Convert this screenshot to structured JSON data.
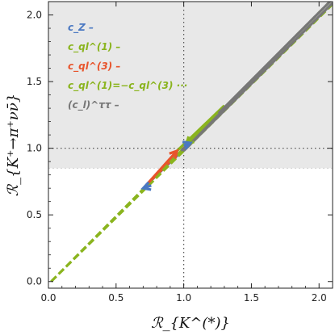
{
  "chart_data": {
    "type": "line",
    "title": "",
    "xlabel": "ℛ_{K^(*)}",
    "ylabel": "ℛ_{K⁺→π⁺νν̄}",
    "xlim": [
      0,
      2.1
    ],
    "ylim": [
      -0.05,
      2.1
    ],
    "x_ticks": [
      "0.0",
      "0.5",
      "1.0",
      "1.5",
      "2.0"
    ],
    "y_ticks": [
      "0.0",
      "0.5",
      "1.0",
      "1.5",
      "2.0"
    ],
    "grid": false,
    "reference_lines": {
      "x": 1.0,
      "y": 1.0
    },
    "shaded_region": {
      "y_from": 0.85,
      "y_to": 2.1,
      "color": "#e8e8e8"
    },
    "legend": {
      "placement": "top-left",
      "entries": [
        {
          "label": "c_Z –",
          "color": "#4a78c2"
        },
        {
          "label": "c_ql^(1) –",
          "color": "#8ab41e"
        },
        {
          "label": "c_ql^(3) –",
          "color": "#e8542c"
        },
        {
          "label": "c_ql^(1)=−c_ql^(3) ···",
          "color": "#8ab41e"
        },
        {
          "label": "(c_l)^ττ –",
          "color": "#777777"
        }
      ]
    },
    "series": [
      {
        "name": "c_Z",
        "style": "solid",
        "color": "#4a78c2",
        "x": [
          0.72,
          1.05
        ],
        "y": [
          0.72,
          1.04
        ]
      },
      {
        "name": "c_ql^(1)",
        "style": "solid",
        "color": "#8ab41e",
        "x": [
          0.93,
          1.3
        ],
        "y": [
          0.96,
          1.32
        ]
      },
      {
        "name": "c_ql^(3)",
        "style": "solid",
        "color": "#e8542c",
        "x": [
          0.72,
          0.96
        ],
        "y": [
          0.72,
          0.96
        ]
      },
      {
        "name": "c_ql^(1)=−c_ql^(3) (a)",
        "style": "dashed",
        "color": "#8ab41e",
        "x": [
          0.02,
          2.1
        ],
        "y": [
          0.0,
          2.12
        ]
      },
      {
        "name": "c_ql^(1)=−c_ql^(3) (b)",
        "style": "dashed",
        "color": "#8ab41e",
        "x": [
          0.02,
          2.1
        ],
        "y": [
          0.0,
          2.08
        ]
      },
      {
        "name": "(c_l)^ττ (a)",
        "style": "solid",
        "color": "#777777",
        "x": [
          0.98,
          2.1
        ],
        "y": [
          0.98,
          2.12
        ]
      },
      {
        "name": "(c_l)^ττ (b)",
        "style": "solid",
        "color": "#777777",
        "x": [
          1.0,
          2.1
        ],
        "y": [
          0.98,
          2.09
        ]
      }
    ],
    "arrows": [
      {
        "color": "#e8542c",
        "from": [
          0.72,
          0.72
        ],
        "to": [
          0.95,
          0.98
        ]
      },
      {
        "color": "#8ab41e",
        "from": [
          1.25,
          1.27
        ],
        "to": [
          1.02,
          1.03
        ]
      },
      {
        "color": "#4a78c2",
        "from": [
          0.76,
          0.72
        ],
        "to": [
          0.7,
          0.7
        ]
      },
      {
        "color": "#4a78c2",
        "from": [
          1.0,
          1.02
        ],
        "to": [
          1.05,
          1.04
        ]
      }
    ]
  }
}
